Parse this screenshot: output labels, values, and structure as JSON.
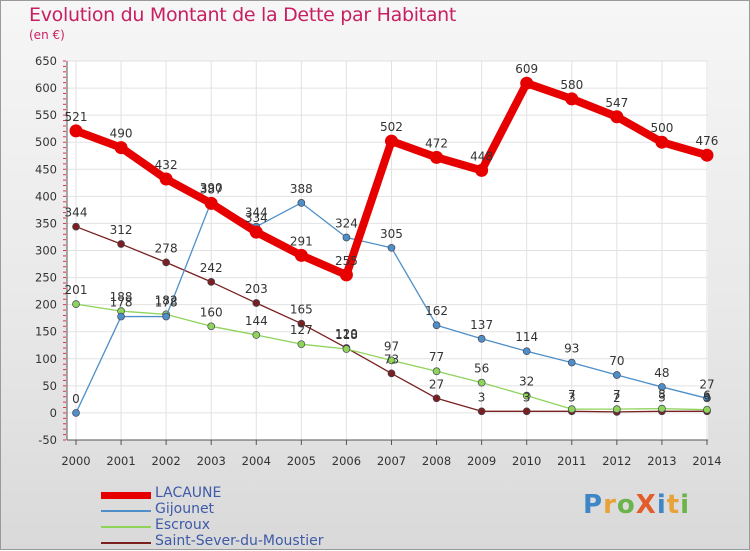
{
  "title": "Evolution du Montant de la Dette par Habitant",
  "unit": "(en €)",
  "logo": {
    "text": "ProXiti",
    "letters": [
      {
        "ch": "P",
        "color": "#3f86c7"
      },
      {
        "ch": "r",
        "color": "#e8a23a"
      },
      {
        "ch": "o",
        "color": "#6bb34a"
      },
      {
        "ch": "X",
        "color": "#e35d2a"
      },
      {
        "ch": "i",
        "color": "#3f86c7"
      },
      {
        "ch": "t",
        "color": "#e8a23a"
      },
      {
        "ch": "i",
        "color": "#6bb34a"
      }
    ]
  },
  "chart_data": {
    "type": "line",
    "x": [
      2000,
      2001,
      2002,
      2003,
      2004,
      2005,
      2006,
      2007,
      2008,
      2009,
      2010,
      2011,
      2012,
      2013,
      2014
    ],
    "yticks": [
      -50,
      0,
      50,
      100,
      150,
      200,
      250,
      300,
      350,
      400,
      450,
      500,
      550,
      600,
      650
    ],
    "ylim": [
      -50,
      650
    ],
    "grid": true,
    "legend_position": "bottom-left",
    "series": [
      {
        "name": "LACAUNE",
        "color": "#e60000",
        "values": [
          521,
          490,
          432,
          387,
          334,
          291,
          255,
          502,
          472,
          448,
          609,
          580,
          547,
          500,
          476
        ]
      },
      {
        "name": "Gijounet",
        "color": "#4f8fc8",
        "values": [
          0,
          178,
          178,
          390,
          344,
          388,
          324,
          305,
          162,
          137,
          114,
          93,
          70,
          48,
          27
        ]
      },
      {
        "name": "Escroux",
        "color": "#8ed35a",
        "values": [
          201,
          188,
          182,
          160,
          144,
          127,
          118,
          97,
          77,
          56,
          32,
          7,
          7,
          8,
          6
        ]
      },
      {
        "name": "Saint-Sever-du-Moustier",
        "color": "#7a2020",
        "values": [
          344,
          312,
          278,
          242,
          203,
          165,
          120,
          73,
          27,
          3,
          3,
          3,
          2,
          3,
          3
        ]
      }
    ]
  }
}
